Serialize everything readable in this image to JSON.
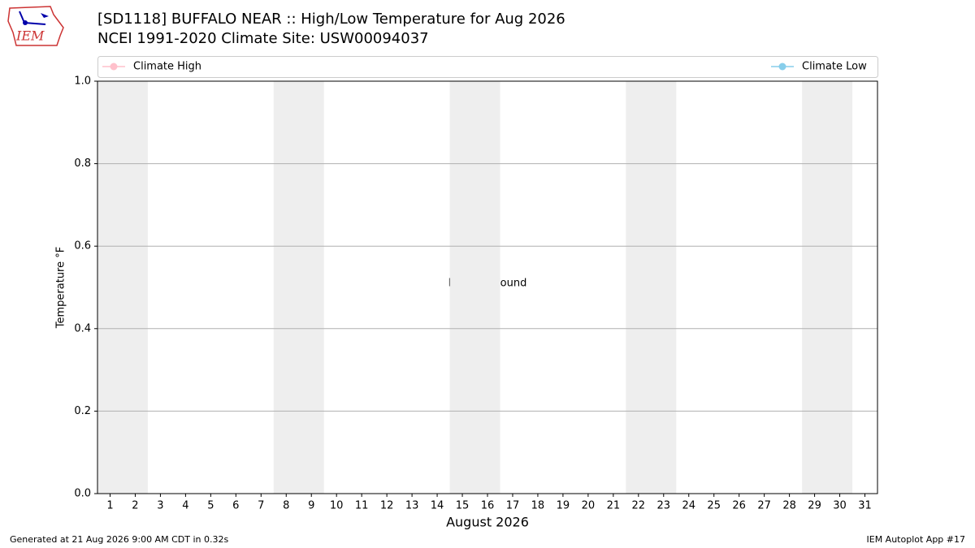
{
  "chart_data": {
    "type": "line",
    "title": "[SD1118] BUFFALO NEAR :: High/Low Temperature for Aug 2026",
    "subtitle": "NCEI 1991-2020 Climate Site: USW00094037",
    "logo_text": "IEM",
    "ylabel": "Temperature °F",
    "xlabel": "August 2026",
    "annotation": "No Data Found",
    "series": [
      {
        "name": "Climate High",
        "color": "#ffc0cb"
      },
      {
        "name": "Climate Low",
        "color": "#87ceeb"
      }
    ],
    "legend": "top",
    "xlim": [
      0.5,
      31.5
    ],
    "xticks": [
      1,
      2,
      3,
      4,
      5,
      6,
      7,
      8,
      9,
      10,
      11,
      12,
      13,
      14,
      15,
      16,
      17,
      18,
      19,
      20,
      21,
      22,
      23,
      24,
      25,
      26,
      27,
      28,
      29,
      30,
      31
    ],
    "ylim": [
      0,
      1
    ],
    "yticks": [
      {
        "value": 0,
        "label": "0.0"
      },
      0.2,
      0.4,
      0.6,
      0.8,
      {
        "value": 1,
        "label": "1.0"
      }
    ],
    "grid": true,
    "shaded_ranges": [
      [
        0.5,
        2.5
      ],
      [
        7.5,
        9.5
      ],
      [
        14.5,
        16.5
      ],
      [
        21.5,
        23.5
      ],
      [
        28.5,
        30.5
      ]
    ],
    "shade_color": "#eeeeee",
    "footer_left": "Generated at 21 Aug 2026 9:00 AM CDT in 0.32s",
    "footer_right": "IEM Autoplot App #17"
  }
}
